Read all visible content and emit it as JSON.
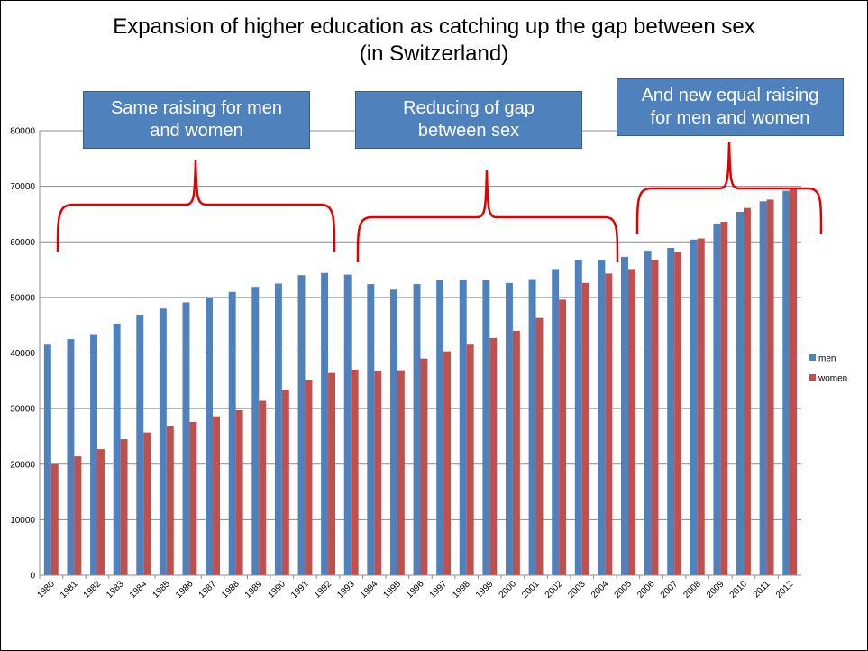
{
  "chart_data": {
    "type": "bar",
    "title": [
      "Expansion of higher education as catching up the gap between sex",
      "(in Switzerland)"
    ],
    "annotations": [
      {
        "lines": [
          "Same raising for men",
          "and women"
        ]
      },
      {
        "lines": [
          "Reducing of gap",
          "between sex"
        ]
      },
      {
        "lines": [
          "And new equal raising",
          "for men and women"
        ]
      }
    ],
    "categories": [
      "1980",
      "1981",
      "1982",
      "1983",
      "1984",
      "1985",
      "1986",
      "1987",
      "1988",
      "1989",
      "1990",
      "1991",
      "1992",
      "1993",
      "1994",
      "1995",
      "1996",
      "1997",
      "1998",
      "1999",
      "2000",
      "2001",
      "2002",
      "2003",
      "2004",
      "2005",
      "2006",
      "2007",
      "2008",
      "2009",
      "2010",
      "2011",
      "2012"
    ],
    "series": [
      {
        "name": "men",
        "color": "#4f81bd",
        "values": [
          41500,
          42500,
          43400,
          45300,
          46900,
          48000,
          49100,
          50000,
          51000,
          51900,
          52500,
          54000,
          54400,
          54100,
          52400,
          51400,
          52400,
          53100,
          53200,
          53100,
          52600,
          53300,
          55100,
          56800,
          56800,
          57300,
          58400,
          58900,
          60400,
          63300,
          65400,
          67300,
          69200
        ]
      },
      {
        "name": "women",
        "color": "#c0504d",
        "values": [
          20000,
          21400,
          22700,
          24500,
          25700,
          26800,
          27600,
          28600,
          29700,
          31400,
          33400,
          35200,
          36400,
          37000,
          36800,
          36900,
          39000,
          40300,
          41500,
          42700,
          44000,
          46300,
          49600,
          52600,
          54300,
          55100,
          56800,
          58100,
          60600,
          63600,
          66100,
          67600,
          69500
        ]
      }
    ],
    "ylim": [
      0,
      80000
    ],
    "yticks": [
      0,
      10000,
      20000,
      30000,
      40000,
      50000,
      60000,
      70000,
      80000
    ],
    "grid": true,
    "legend": "right"
  }
}
